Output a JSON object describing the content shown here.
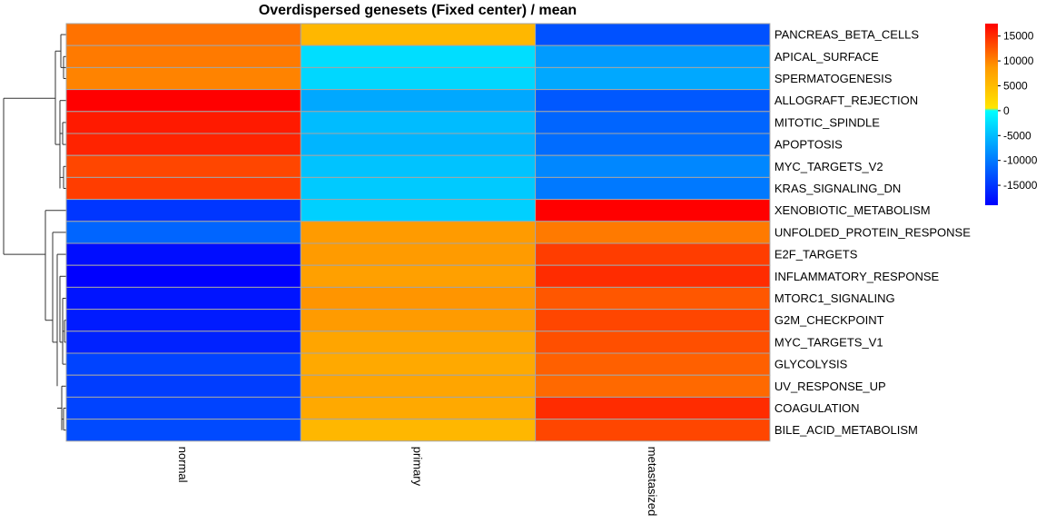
{
  "chart_data": {
    "type": "heatmap",
    "title": "Overdispersed genesets (Fixed center) / mean",
    "columns": [
      "normal",
      "primary",
      "metastasized"
    ],
    "rows": [
      "PANCREAS_BETA_CELLS",
      "APICAL_SURFACE",
      "SPERMATOGENESIS",
      "ALLOGRAFT_REJECTION",
      "MITOTIC_SPINDLE",
      "APOPTOSIS",
      "MYC_TARGETS_V2",
      "KRAS_SIGNALING_DN",
      "XENOBIOTIC_METABOLISM",
      "UNFOLDED_PROTEIN_RESPONSE",
      "E2F_TARGETS",
      "INFLAMMATORY_RESPONSE",
      "MTORC1_SIGNALING",
      "G2M_CHECKPOINT",
      "MYC_TARGETS_V1",
      "GLYCOLYSIS",
      "UV_RESPONSE_UP",
      "COAGULATION",
      "BILE_ACID_METABOLISM"
    ],
    "values": [
      [
        11000,
        5500,
        -13000
      ],
      [
        10500,
        -2500,
        -7500
      ],
      [
        10000,
        -3000,
        -6500
      ],
      [
        17500,
        -6500,
        -12500
      ],
      [
        16000,
        -5000,
        -11500
      ],
      [
        15500,
        -5500,
        -11000
      ],
      [
        13500,
        -4500,
        -9000
      ],
      [
        14000,
        -4000,
        -10000
      ],
      [
        -15000,
        -3500,
        17500
      ],
      [
        -11500,
        8500,
        10500
      ],
      [
        -18000,
        8500,
        14000
      ],
      [
        -19000,
        8000,
        15000
      ],
      [
        -17500,
        9000,
        12500
      ],
      [
        -17000,
        8500,
        13500
      ],
      [
        -16500,
        7500,
        13000
      ],
      [
        -14000,
        7000,
        12000
      ],
      [
        -14500,
        7500,
        11500
      ],
      [
        -14000,
        7000,
        15000
      ],
      [
        -13500,
        5500,
        13500
      ]
    ],
    "color_scale": {
      "range": [
        -19000,
        17500
      ],
      "stops": [
        {
          "value": -19000,
          "color": "#0000ff"
        },
        {
          "value": -9500,
          "color": "#0080ff"
        },
        {
          "value": 0,
          "color": "#00ffff"
        },
        {
          "value": 500,
          "color": "#ffe600"
        },
        {
          "value": 8750,
          "color": "#ff9900"
        },
        {
          "value": 17500,
          "color": "#ff0000"
        }
      ],
      "ticks": [
        15000,
        10000,
        5000,
        0,
        -5000,
        -10000,
        -15000
      ],
      "tick_labels": [
        "15000",
        "10000",
        "5000",
        "0",
        "-5000",
        "-10000",
        "-15000"
      ]
    },
    "legend_position": "top-right",
    "grid": false
  }
}
